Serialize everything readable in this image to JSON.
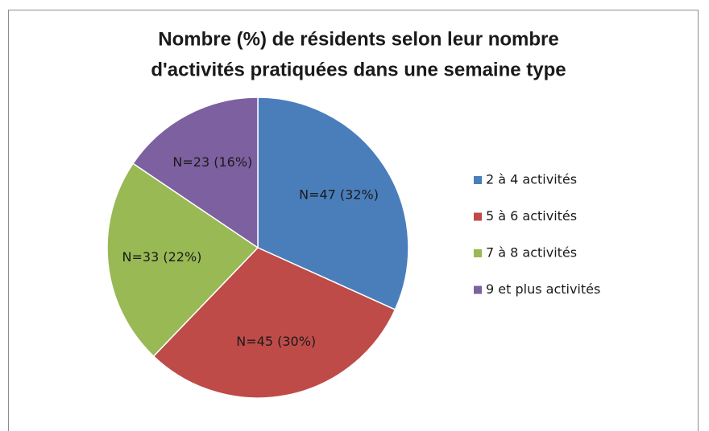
{
  "chart_data": {
    "type": "pie",
    "title": "Nombre (%)  de résidents selon leur nombre d'activités pratiquées dans une semaine type",
    "title_lines": [
      "Nombre (%)  de résidents selon leur nombre",
      "d'activités pratiquées dans une semaine type"
    ],
    "categories": [
      "2 à 4 activités",
      "5 à 6 activités",
      "7 à 8 activités",
      "9 et plus activités"
    ],
    "values": [
      47,
      45,
      33,
      23
    ],
    "value_labels": [
      "N=47 (32%)",
      "N=45 (30%)",
      "N=33 (22%)",
      "N=23 (16%)"
    ],
    "colors": [
      "#4a7ebb",
      "#be4b48",
      "#98b954",
      "#7d60a0"
    ],
    "legend": "right"
  }
}
